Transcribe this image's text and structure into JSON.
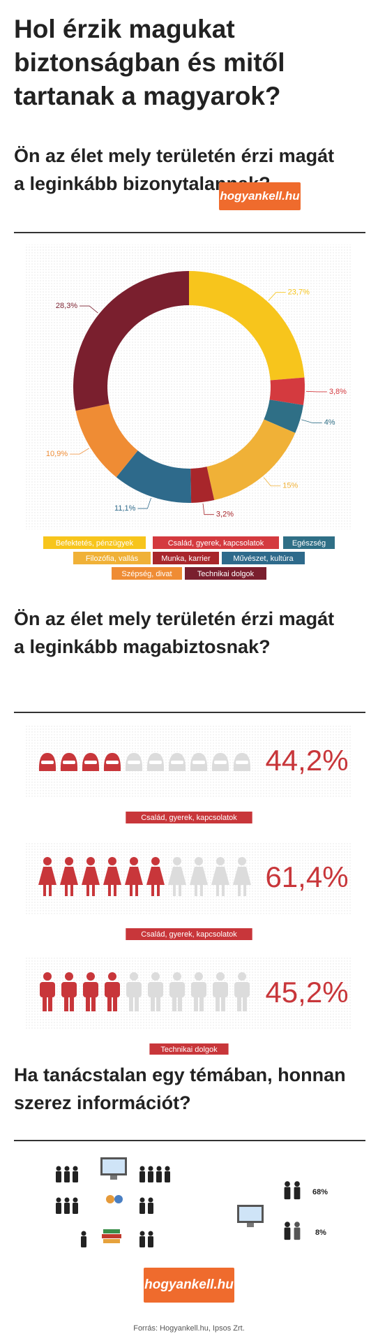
{
  "title": "Hol érzik magukat biztonságban és mitől tartanak a magyarok?",
  "logo": "hogyankell.hu",
  "chart_data": [
    {
      "type": "pie",
      "donut": true,
      "title": "Ön az élet mely területén érzi magát a leginkább bizonytalannak?",
      "categories": [
        "Befektetés, pénzügyek",
        "Család, gyerek, kapcsolatok",
        "Egészség",
        "Filozófia, vallás",
        "Munka, karrier",
        "Művészet, kultúra",
        "Szépség, divat",
        "Technikai dolgok"
      ],
      "values": [
        23.7,
        3.8,
        4,
        15,
        3.2,
        11.1,
        10.9,
        28.3
      ],
      "value_labels": [
        "23,7%",
        "3,8%",
        "4%",
        "15%",
        "3,2%",
        "11,1%",
        "10,9%",
        "28,3%"
      ],
      "colors": [
        "#f7c51c",
        "#d43a3f",
        "#2f6f86",
        "#f0b137",
        "#a8262b",
        "#2e6a8b",
        "#ef8c34",
        "#7a1f2e"
      ]
    },
    {
      "type": "pictogram",
      "title": "Ön az élet mely területén érzi magát a leginkább magabiztosnak?",
      "categories": [
        "Család, gyerek, kapcsolatok",
        "Család, gyerek, kapcsolatok",
        "Technikai dolgok"
      ],
      "icons": [
        "head",
        "woman",
        "man"
      ],
      "values": [
        44.2,
        61.4,
        45.2
      ],
      "value_labels": [
        "44,2%",
        "61,4%",
        "45,2%"
      ],
      "ylim": [
        0,
        100
      ],
      "color": "#c8363a",
      "empty_color": "#dcdcdc"
    }
  ],
  "info": {
    "title": "Ha tanácstalan egy témában, honnan szerez információt?",
    "stats": [
      "68%",
      "8%"
    ]
  },
  "source": "Forrás: Hogyankell.hu, Ipsos Zrt."
}
